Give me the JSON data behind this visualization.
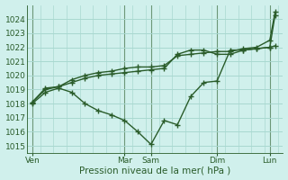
{
  "title": "Pression niveau de la mer( hPa )",
  "bg_color": "#d0f0ec",
  "grid_color": "#a8d8d0",
  "line_color": "#2a5c2a",
  "ylim": [
    1014.5,
    1025.0
  ],
  "yticks": [
    1015,
    1016,
    1017,
    1018,
    1019,
    1020,
    1021,
    1022,
    1023,
    1024
  ],
  "xtick_labels": [
    "Ven",
    "",
    "Mar",
    "Sam",
    "",
    "Dim",
    "",
    "Lun"
  ],
  "xtick_positions": [
    0,
    1.75,
    3.5,
    4.5,
    6.0,
    7.0,
    8.0,
    9.0
  ],
  "xlim": [
    -0.2,
    9.5
  ],
  "vline_positions": [
    0,
    3.5,
    4.5,
    7.0,
    9.0
  ],
  "line1_x": [
    0,
    0.5,
    1.0,
    1.5,
    2.0,
    2.5,
    3.0,
    3.5,
    4.0,
    4.5,
    5.0,
    5.5,
    6.0,
    6.5,
    7.0,
    7.5,
    8.0,
    8.5,
    9.0,
    9.2
  ],
  "line1_y": [
    1018.0,
    1018.8,
    1019.1,
    1018.8,
    1018.0,
    1017.5,
    1017.2,
    1016.8,
    1016.0,
    1015.1,
    1016.8,
    1016.5,
    1018.5,
    1019.5,
    1019.6,
    1021.8,
    1021.8,
    1021.9,
    1022.0,
    1022.1
  ],
  "line2_x": [
    0,
    0.5,
    1.0,
    1.5,
    2.0,
    2.5,
    3.0,
    3.5,
    4.0,
    4.5,
    5.0,
    5.5,
    6.0,
    6.5,
    7.0,
    7.5,
    8.0,
    8.5,
    9.0,
    9.2
  ],
  "line2_y": [
    1018.1,
    1019.1,
    1019.2,
    1019.5,
    1019.8,
    1020.0,
    1020.1,
    1020.2,
    1020.3,
    1020.4,
    1020.5,
    1021.5,
    1021.8,
    1021.8,
    1021.5,
    1021.5,
    1021.8,
    1021.9,
    1022.0,
    1024.3
  ],
  "line3_x": [
    0,
    0.5,
    1.0,
    1.5,
    2.0,
    2.5,
    3.0,
    3.5,
    4.0,
    4.5,
    5.0,
    5.5,
    6.0,
    6.5,
    7.0,
    7.5,
    8.0,
    8.5,
    9.0,
    9.2
  ],
  "line3_y": [
    1018.1,
    1019.0,
    1019.2,
    1019.7,
    1020.0,
    1020.2,
    1020.3,
    1020.5,
    1020.6,
    1020.6,
    1020.7,
    1021.4,
    1021.5,
    1021.6,
    1021.7,
    1021.7,
    1021.9,
    1022.0,
    1022.5,
    1024.5
  ],
  "marker_size": 2.5,
  "linewidth": 1.0,
  "title_fontsize": 7.5,
  "tick_fontsize": 6.5
}
